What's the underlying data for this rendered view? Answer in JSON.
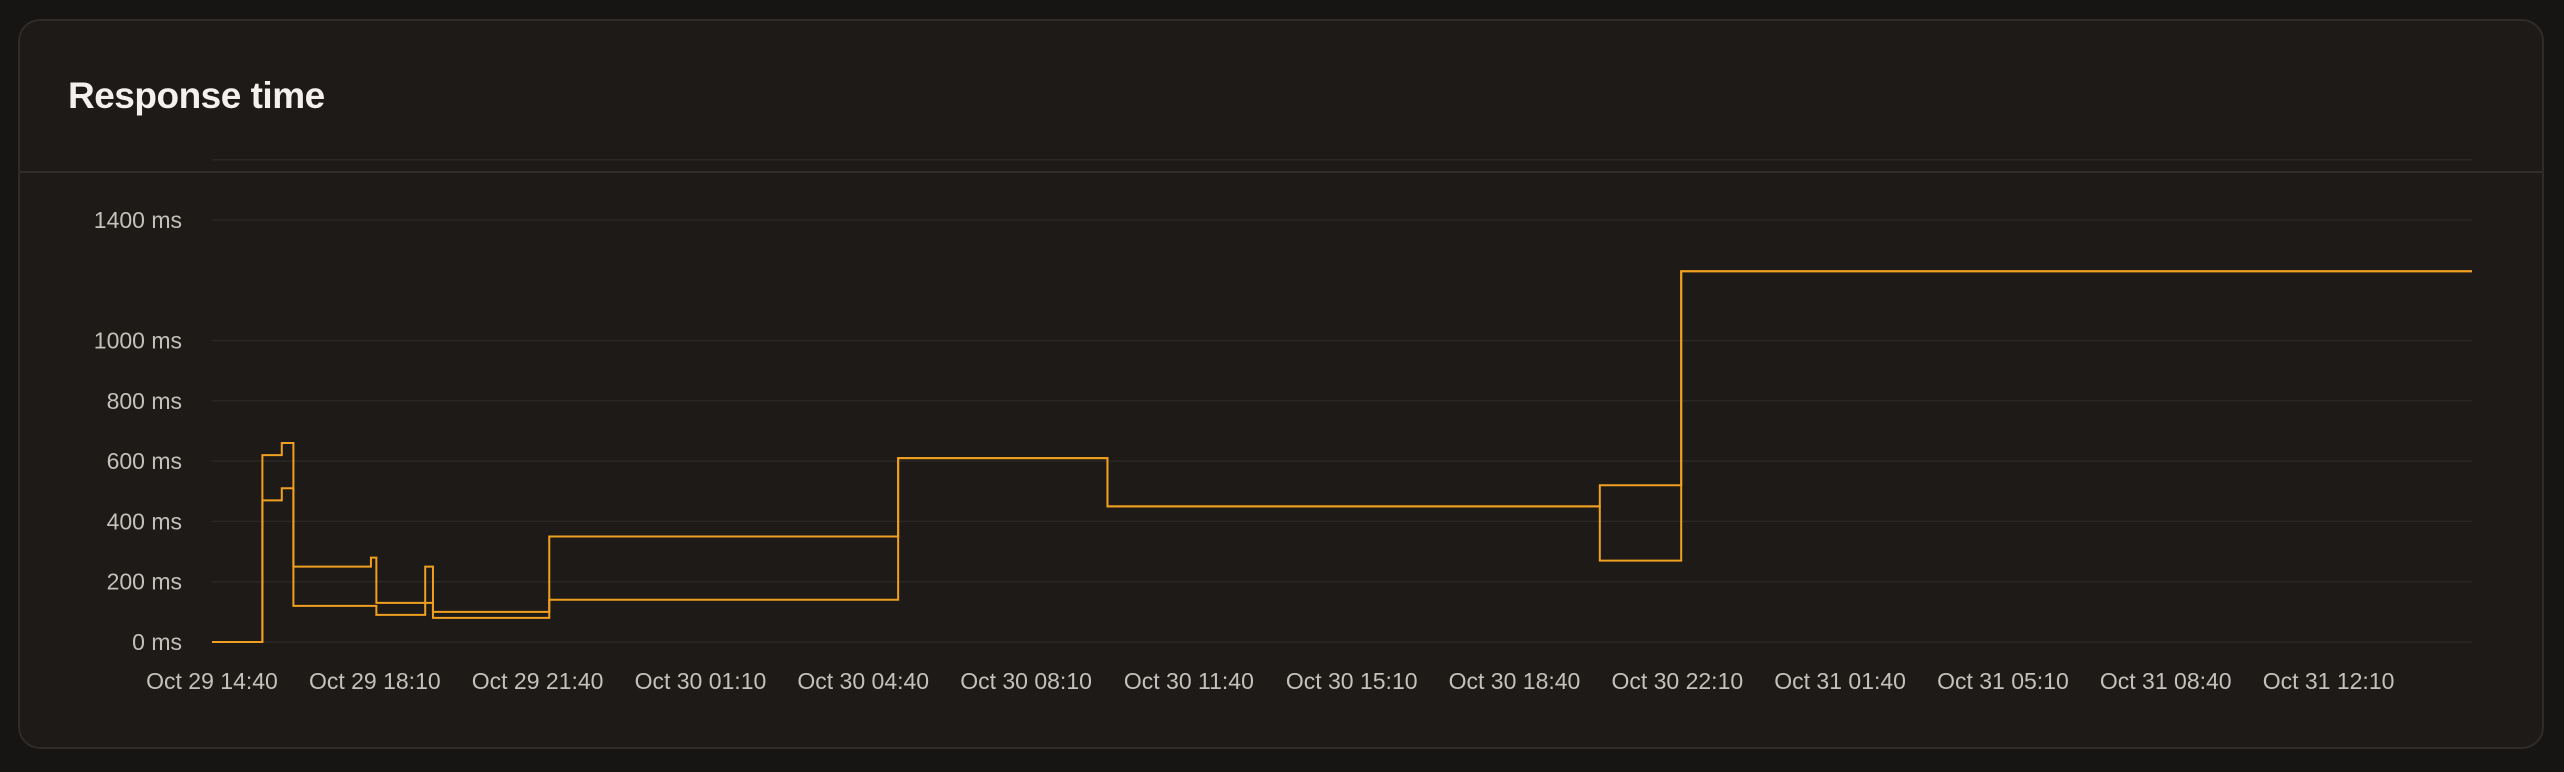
{
  "panel": {
    "title": "Response time"
  },
  "colors": {
    "series": "#f0a020",
    "grid": "#2a2724",
    "background": "#1d1a17"
  },
  "chart_data": {
    "type": "line",
    "step": true,
    "title": "Response time",
    "xlabel": "",
    "ylabel": "",
    "ylim": [
      0,
      1400
    ],
    "y_ticks": [
      {
        "value": 0,
        "label": "0 ms"
      },
      {
        "value": 200,
        "label": "200 ms"
      },
      {
        "value": 400,
        "label": "400 ms"
      },
      {
        "value": 600,
        "label": "600 ms"
      },
      {
        "value": 800,
        "label": "800 ms"
      },
      {
        "value": 1000,
        "label": "1000 ms"
      },
      {
        "value": 1400,
        "label": "1400 ms"
      }
    ],
    "x_range": [
      "Oct 29 14:40",
      "Oct 31 15:15"
    ],
    "x_ticks": [
      "Oct 29 14:40",
      "Oct 29 18:10",
      "Oct 29 21:40",
      "Oct 30 01:10",
      "Oct 30 04:40",
      "Oct 30 08:10",
      "Oct 30 11:40",
      "Oct 30 15:10",
      "Oct 30 18:40",
      "Oct 30 22:10",
      "Oct 31 01:40",
      "Oct 31 05:10",
      "Oct 31 08:40",
      "Oct 31 12:10"
    ],
    "grid": true,
    "series": [
      {
        "values": [
          {
            "x": "Oct 29 14:40",
            "y": 0
          },
          {
            "x": "Oct 29 15:45",
            "y": 620
          },
          {
            "x": "Oct 29 16:10",
            "y": 660
          },
          {
            "x": "Oct 29 16:25",
            "y": 250
          },
          {
            "x": "Oct 29 18:05",
            "y": 280
          },
          {
            "x": "Oct 29 18:12",
            "y": 130
          },
          {
            "x": "Oct 29 19:15",
            "y": 250
          },
          {
            "x": "Oct 29 19:25",
            "y": 100
          },
          {
            "x": "Oct 29 21:55",
            "y": 350
          },
          {
            "x": "Oct 30 05:25",
            "y": 610
          },
          {
            "x": "Oct 30 09:55",
            "y": 450
          },
          {
            "x": "Oct 30 20:30",
            "y": 520
          },
          {
            "x": "Oct 30 22:15",
            "y": 1230
          },
          {
            "x": "Oct 31 15:15",
            "y": 1230
          }
        ]
      },
      {
        "values": [
          {
            "x": "Oct 29 14:40",
            "y": 0
          },
          {
            "x": "Oct 29 15:45",
            "y": 470
          },
          {
            "x": "Oct 29 16:10",
            "y": 510
          },
          {
            "x": "Oct 29 16:25",
            "y": 120
          },
          {
            "x": "Oct 29 18:12",
            "y": 90
          },
          {
            "x": "Oct 29 19:15",
            "y": 130
          },
          {
            "x": "Oct 29 19:25",
            "y": 80
          },
          {
            "x": "Oct 29 21:55",
            "y": 140
          },
          {
            "x": "Oct 30 05:25",
            "y": 610
          },
          {
            "x": "Oct 30 09:55",
            "y": 450
          },
          {
            "x": "Oct 30 20:30",
            "y": 270
          },
          {
            "x": "Oct 30 22:15",
            "y": 1230
          },
          {
            "x": "Oct 31 15:15",
            "y": 1230
          }
        ]
      }
    ]
  }
}
